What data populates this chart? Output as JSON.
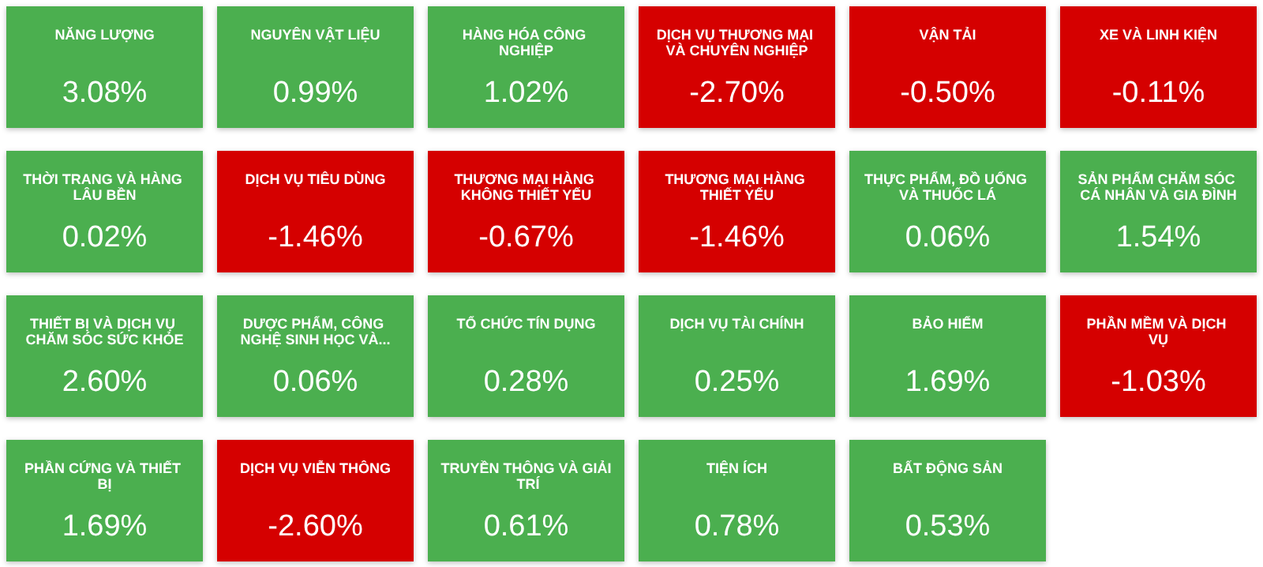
{
  "chart_data": {
    "type": "other",
    "categories": [
      "NĂNG LƯỢNG",
      "NGUYÊN VẬT LIỆU",
      "HÀNG HÓA CÔNG NGHIỆP",
      "DỊCH VỤ THƯƠNG MẠI VÀ CHUYÊN NGHIỆP",
      "VẬN TẢI",
      "XE VÀ LINH KIỆN",
      "THỜI TRANG VÀ HÀNG LÂU BỀN",
      "DỊCH VỤ TIÊU DÙNG",
      "THƯƠNG MẠI HÀNG KHÔNG THIẾT YẾU",
      "THƯƠNG MẠI HÀNG THIẾT YẾU",
      "THỰC PHẨM, ĐỒ UỐNG VÀ THUỐC LÁ",
      "SẢN PHẨM CHĂM SÓC CÁ NHÂN VÀ GIA ĐÌNH",
      "THIẾT BỊ VÀ DỊCH VỤ CHĂM SÓC SỨC KHỎE",
      "DƯỢC PHẨM, CÔNG NGHỆ SINH HỌC VÀ...",
      "TỔ CHỨC TÍN DỤNG",
      "DỊCH VỤ TÀI CHÍNH",
      "BẢO HIỂM",
      "PHẦN MỀM VÀ DỊCH VỤ",
      "PHẦN CỨNG VÀ THIẾT BỊ",
      "DỊCH VỤ VIỄN THÔNG",
      "TRUYỀN THÔNG VÀ GIẢI TRÍ",
      "TIỆN ÍCH",
      "BẤT ĐỘNG SẢN"
    ],
    "values": [
      3.08,
      0.99,
      1.02,
      -2.7,
      -0.5,
      -0.11,
      0.02,
      -1.46,
      -0.67,
      -1.46,
      0.06,
      1.54,
      2.6,
      0.06,
      0.28,
      0.25,
      1.69,
      -1.03,
      1.69,
      -2.6,
      0.61,
      0.78,
      0.53
    ],
    "value_labels": [
      "3.08%",
      "0.99%",
      "1.02%",
      "-2.70%",
      "-0.50%",
      "-0.11%",
      "0.02%",
      "-1.46%",
      "-0.67%",
      "-1.46%",
      "0.06%",
      "1.54%",
      "2.60%",
      "0.06%",
      "0.28%",
      "0.25%",
      "1.69%",
      "-1.03%",
      "1.69%",
      "-2.60%",
      "0.61%",
      "0.78%",
      "0.53%"
    ],
    "colors": [
      "#4caf50",
      "#4caf50",
      "#4caf50",
      "#d50000",
      "#d50000",
      "#d50000",
      "#4caf50",
      "#d50000",
      "#d50000",
      "#d50000",
      "#4caf50",
      "#4caf50",
      "#4caf50",
      "#4caf50",
      "#4caf50",
      "#4caf50",
      "#4caf50",
      "#d50000",
      "#4caf50",
      "#d50000",
      "#4caf50",
      "#4caf50",
      "#4caf50"
    ]
  }
}
